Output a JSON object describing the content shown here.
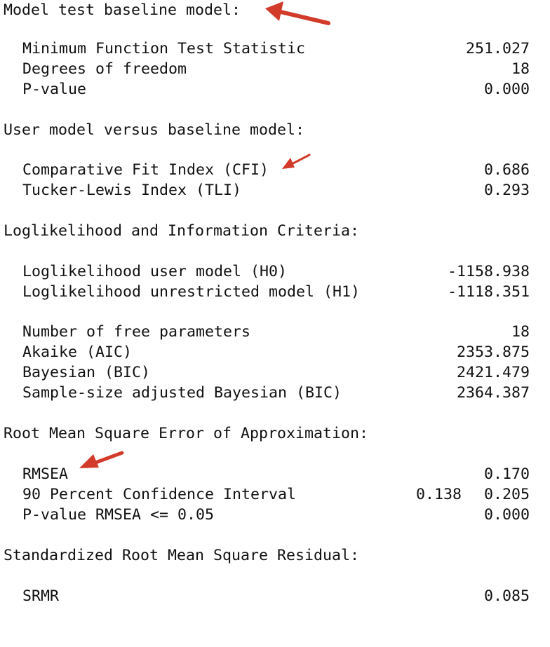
{
  "baseline": {
    "title": "Model test baseline model:",
    "rows": [
      {
        "label": "Minimum Function Test Statistic",
        "value": "251.027"
      },
      {
        "label": "Degrees of freedom",
        "value": "18"
      },
      {
        "label": "P-value",
        "value": "0.000"
      }
    ]
  },
  "user_vs_baseline": {
    "title": "User model versus baseline model:",
    "rows": [
      {
        "label": "Comparative Fit Index (CFI)",
        "value": "0.686"
      },
      {
        "label": "Tucker-Lewis Index (TLI)",
        "value": "0.293"
      }
    ]
  },
  "loglikelihood": {
    "title": "Loglikelihood and Information Criteria:",
    "rows": [
      {
        "label": "Loglikelihood user model (H0)",
        "value": "-1158.938"
      },
      {
        "label": "Loglikelihood unrestricted model (H1)",
        "value": "-1118.351"
      },
      {
        "label": "Number of free parameters",
        "value": "18"
      },
      {
        "label": "Akaike (AIC)",
        "value": "2353.875"
      },
      {
        "label": "Bayesian (BIC)",
        "value": "2421.479"
      },
      {
        "label": "Sample-size adjusted Bayesian (BIC)",
        "value": "2364.387"
      }
    ]
  },
  "rmsea": {
    "title": "Root Mean Square Error of Approximation:",
    "rows": [
      {
        "label": "RMSEA",
        "value": "0.170"
      },
      {
        "label": "90 Percent Confidence Interval",
        "lower": "0.138",
        "value": "0.205"
      },
      {
        "label": "P-value RMSEA <= 0.05",
        "value": "0.000"
      }
    ]
  },
  "srmr": {
    "title": "Standardized Root Mean Square Residual:",
    "rows": [
      {
        "label": "SRMR",
        "value": "0.085"
      }
    ]
  },
  "annotation": {
    "arrow_color": "#d23a2a"
  }
}
